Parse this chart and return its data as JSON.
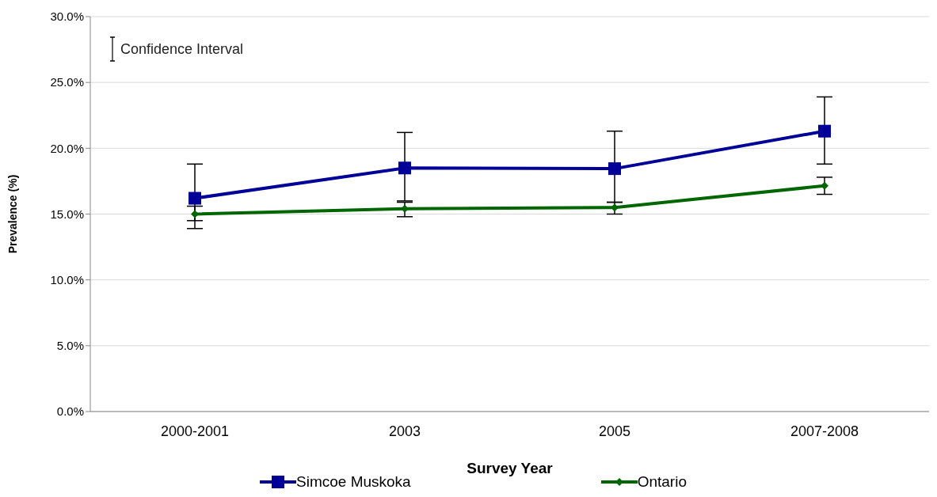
{
  "chart_data": {
    "type": "line",
    "xlabel": "Survey Year",
    "ylabel": "Prevalence (%)",
    "categories": [
      "2000-2001",
      "2003",
      "2005",
      "2007-2008"
    ],
    "series": [
      {
        "name": "Simcoe Muskoka",
        "color": "#000099",
        "marker": "square",
        "values": [
          16.2,
          18.5,
          18.45,
          21.3
        ],
        "errors": [
          [
            13.9,
            18.8
          ],
          [
            16.0,
            21.2
          ],
          [
            15.9,
            21.3
          ],
          [
            18.8,
            23.9
          ]
        ]
      },
      {
        "name": "Ontario",
        "color": "#006600",
        "marker": "diamond",
        "values": [
          15.0,
          15.4,
          15.5,
          17.15
        ],
        "errors": [
          [
            14.5,
            15.6
          ],
          [
            14.8,
            15.9
          ],
          [
            15.0,
            15.9
          ],
          [
            16.5,
            17.8
          ]
        ]
      }
    ],
    "ylim": [
      0,
      30
    ],
    "yticks": [
      {
        "value": 0,
        "label": "0.0%"
      },
      {
        "value": 5,
        "label": "5.0%"
      },
      {
        "value": 10,
        "label": "10.0%"
      },
      {
        "value": 15,
        "label": "15.0%"
      },
      {
        "value": 20,
        "label": "20.0%"
      },
      {
        "value": 25,
        "label": "25.0%"
      },
      {
        "value": 30,
        "label": "30.0%"
      }
    ],
    "grid": "y",
    "legend": "bottom",
    "line_style": "solid",
    "annotations": [
      "Confidence Interval"
    ]
  }
}
